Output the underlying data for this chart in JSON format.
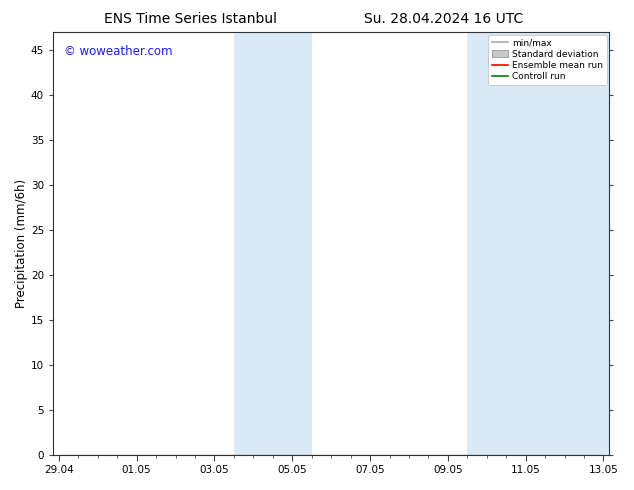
{
  "title_left": "ENS Time Series Istanbul",
  "title_right": "Su. 28.04.2024 16 UTC",
  "ylabel": "Precipitation (mm/6h)",
  "xlabel": "",
  "ylim": [
    0,
    47
  ],
  "yticks": [
    0,
    5,
    10,
    15,
    20,
    25,
    30,
    35,
    40,
    45
  ],
  "xtick_labels": [
    "29.04",
    "01.05",
    "03.05",
    "05.05",
    "07.05",
    "09.05",
    "11.05",
    "13.05"
  ],
  "xtick_positions": [
    0,
    2,
    4,
    6,
    8,
    10,
    12,
    14
  ],
  "background_color": "#ffffff",
  "plot_bg_color": "#ffffff",
  "shaded_bands": [
    {
      "x_start": 4.5,
      "x_end": 6.5,
      "color": "#daeaf7"
    },
    {
      "x_start": 10.5,
      "x_end": 14.2,
      "color": "#daeaf7"
    }
  ],
  "legend_labels": [
    "min/max",
    "Standard deviation",
    "Ensemble mean run",
    "Controll run"
  ],
  "legend_colors": [
    "#aaaaaa",
    "#c8c8c8",
    "#ff0000",
    "#008000"
  ],
  "watermark_text": "© woweather.com",
  "watermark_color": "#1a1aff",
  "title_fontsize": 10,
  "tick_fontsize": 7.5,
  "ylabel_fontsize": 8.5,
  "watermark_fontsize": 8.5,
  "xlim": [
    -0.15,
    14.15
  ]
}
